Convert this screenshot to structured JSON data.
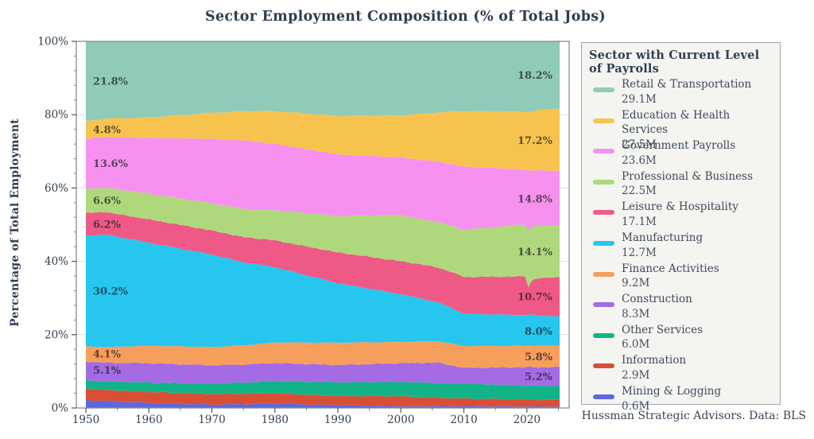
{
  "title": "Sector Employment Composition (% of Total Jobs)",
  "footer": "Hussman Strategic Advisors. Data: BLS",
  "y_axis": {
    "label": "Percentage of Total Employment",
    "ticks": [
      "0%",
      "20%",
      "40%",
      "60%",
      "80%",
      "100%"
    ]
  },
  "x_axis": {
    "ticks": [
      "1950",
      "1960",
      "1970",
      "1980",
      "1990",
      "2000",
      "2010",
      "2020"
    ]
  },
  "legend": {
    "title": "Sector with Current Level of Payrolls"
  },
  "chart_data": {
    "type": "area",
    "stacked": true,
    "normalized_percent": true,
    "title": "Sector Employment Composition (% of Total Jobs)",
    "ylabel": "Percentage of Total Employment",
    "ylim": [
      0,
      100
    ],
    "x_range": [
      1950,
      2025.2
    ],
    "grid": "horizontal-light",
    "legend_position": "right",
    "series": [
      {
        "name": "Retail & Transportation",
        "payrolls": "29.1M",
        "color": "#8FCBB8",
        "label_start": "21.8%",
        "label_end": "18.2%",
        "points": [
          [
            1950,
            21.8
          ],
          [
            1960,
            20.8
          ],
          [
            1970,
            19.5
          ],
          [
            1980,
            19.0
          ],
          [
            1990,
            20.3
          ],
          [
            2000,
            20.2
          ],
          [
            2010,
            19.0
          ],
          [
            2020,
            19.3
          ],
          [
            2025.2,
            18.2
          ]
        ]
      },
      {
        "name": "Education & Health Services",
        "payrolls": "27.5M",
        "color": "#F6C44E",
        "label_start": "4.8%",
        "label_end": "17.2%",
        "points": [
          [
            1950,
            4.8
          ],
          [
            1960,
            5.6
          ],
          [
            1970,
            7.1
          ],
          [
            1980,
            8.9
          ],
          [
            1990,
            10.5
          ],
          [
            2000,
            11.4
          ],
          [
            2010,
            15.0
          ],
          [
            2020,
            15.9
          ],
          [
            2025.2,
            17.2
          ]
        ]
      },
      {
        "name": "Government Payrolls",
        "payrolls": "23.6M",
        "color": "#F691F0",
        "label_start": "13.6%",
        "label_end": "14.8%",
        "points": [
          [
            1950,
            13.6
          ],
          [
            1960,
            15.3
          ],
          [
            1970,
            17.6
          ],
          [
            1975,
            18.8
          ],
          [
            1980,
            18.1
          ],
          [
            1990,
            16.8
          ],
          [
            2000,
            15.7
          ],
          [
            2010,
            17.2
          ],
          [
            2019.8,
            15.0
          ],
          [
            2020.2,
            16.4
          ],
          [
            2021,
            15.2
          ],
          [
            2025.2,
            14.8
          ]
        ]
      },
      {
        "name": "Professional & Business",
        "payrolls": "22.5M",
        "color": "#AFD87C",
        "label_start": "6.6%",
        "label_end": "14.1%",
        "points": [
          [
            1950,
            6.6
          ],
          [
            1960,
            7.0
          ],
          [
            1970,
            7.4
          ],
          [
            1980,
            8.2
          ],
          [
            1990,
            9.9
          ],
          [
            2000,
            12.6
          ],
          [
            2003,
            12.3
          ],
          [
            2010,
            12.8
          ],
          [
            2019.8,
            14.3
          ],
          [
            2020.2,
            15.3
          ],
          [
            2020.7,
            14.6
          ],
          [
            2025.2,
            14.1
          ]
        ]
      },
      {
        "name": "Leisure & Hospitality",
        "payrolls": "17.1M",
        "color": "#EE5A85",
        "label_start": "6.2%",
        "label_end": "10.7%",
        "points": [
          [
            1950,
            6.2
          ],
          [
            1960,
            6.4
          ],
          [
            1970,
            6.6
          ],
          [
            1980,
            7.3
          ],
          [
            1990,
            8.4
          ],
          [
            2000,
            9.0
          ],
          [
            2010,
            10.0
          ],
          [
            2019.8,
            10.6
          ],
          [
            2020.2,
            7.2
          ],
          [
            2020.7,
            9.2
          ],
          [
            2021.5,
            10.2
          ],
          [
            2025.2,
            10.7
          ]
        ]
      },
      {
        "name": "Manufacturing",
        "payrolls": "12.7M",
        "color": "#26C6EF",
        "label_start": "30.2%",
        "label_end": "8.0%",
        "points": [
          [
            1950,
            30.2
          ],
          [
            1953,
            31.3
          ],
          [
            1960,
            28.2
          ],
          [
            1970,
            25.2
          ],
          [
            1980,
            20.5
          ],
          [
            1990,
            16.2
          ],
          [
            2000,
            13.0
          ],
          [
            2008,
            9.8
          ],
          [
            2010,
            8.75
          ],
          [
            2020,
            8.4
          ],
          [
            2025.2,
            8.0
          ]
        ]
      },
      {
        "name": "Finance Activities",
        "payrolls": "9.2M",
        "color": "#F69E5B",
        "label_start": "4.1%",
        "label_end": "5.8%",
        "points": [
          [
            1950,
            4.1
          ],
          [
            1960,
            4.8
          ],
          [
            1970,
            5.0
          ],
          [
            1980,
            5.6
          ],
          [
            1990,
            6.1
          ],
          [
            2000,
            5.8
          ],
          [
            2010,
            5.95
          ],
          [
            2020,
            5.9
          ],
          [
            2025.2,
            5.8
          ]
        ]
      },
      {
        "name": "Construction",
        "payrolls": "8.3M",
        "color": "#A46BE4",
        "label_start": "5.1%",
        "label_end": "5.2%",
        "points": [
          [
            1950,
            5.1
          ],
          [
            1960,
            5.3
          ],
          [
            1970,
            5.0
          ],
          [
            1980,
            4.9
          ],
          [
            1990,
            4.7
          ],
          [
            2000,
            5.1
          ],
          [
            2006,
            5.6
          ],
          [
            2010,
            4.25
          ],
          [
            2020,
            5.0
          ],
          [
            2025.2,
            5.2
          ]
        ]
      },
      {
        "name": "Other Services",
        "payrolls": "6.0M",
        "color": "#12B487",
        "label_start": null,
        "label_end": null,
        "points": [
          [
            1950,
            2.3
          ],
          [
            1960,
            2.55
          ],
          [
            1970,
            2.85
          ],
          [
            1980,
            3.3
          ],
          [
            1990,
            3.75
          ],
          [
            2000,
            3.9
          ],
          [
            2010,
            4.1
          ],
          [
            2020,
            3.8
          ],
          [
            2025.2,
            3.8
          ]
        ]
      },
      {
        "name": "Information",
        "payrolls": "2.9M",
        "color": "#D84F36",
        "label_start": null,
        "label_end": null,
        "points": [
          [
            1950,
            3.1
          ],
          [
            1960,
            3.0
          ],
          [
            1970,
            2.9
          ],
          [
            1980,
            2.85
          ],
          [
            1990,
            2.5
          ],
          [
            2000,
            2.75
          ],
          [
            2010,
            2.05
          ],
          [
            2020,
            1.95
          ],
          [
            2025.2,
            1.8
          ]
        ]
      },
      {
        "name": "Mining & Logging",
        "payrolls": "0.6M",
        "color": "#5C68DC",
        "label_start": null,
        "label_end": null,
        "points": [
          [
            1950,
            2.2
          ],
          [
            1955,
            1.8
          ],
          [
            1960,
            1.4
          ],
          [
            1970,
            0.9
          ],
          [
            1980,
            1.2
          ],
          [
            1990,
            0.75
          ],
          [
            2000,
            0.45
          ],
          [
            2010,
            0.5
          ],
          [
            2020,
            0.4
          ],
          [
            2025.2,
            0.38
          ]
        ]
      }
    ]
  }
}
